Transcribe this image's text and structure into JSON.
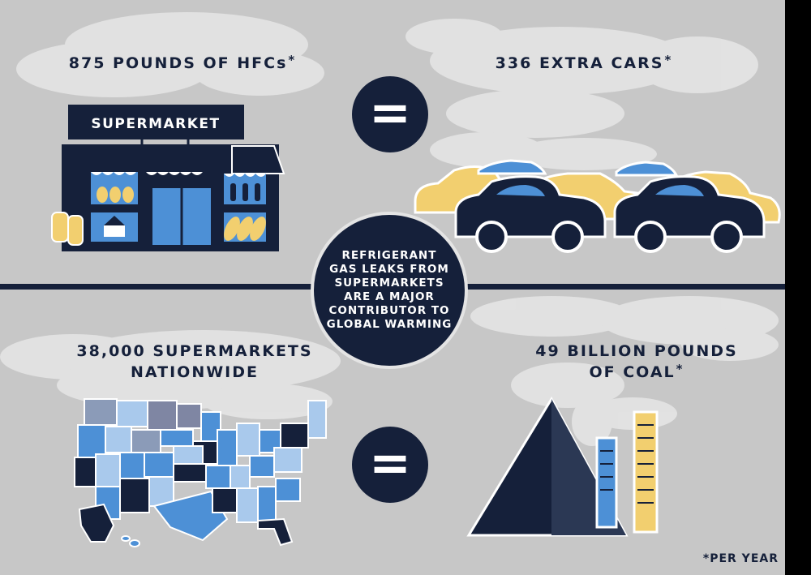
{
  "top": {
    "left_headline": "875 POUNDS OF HFCs",
    "left_asterisk": "*",
    "right_headline": "336 EXTRA CARS",
    "right_asterisk": "*",
    "equals_symbol": "="
  },
  "store": {
    "sign": "SUPERMARKET"
  },
  "center": {
    "text": "REFRIGERANT\nGAS LEAKS FROM\nSUPERMARKETS\nARE A MAJOR\nCONTRIBUTOR TO\nGLOBAL WARMING"
  },
  "bottom": {
    "left_headline_line1": "38,000 SUPERMARKETS",
    "left_headline_line2": "NATIONWIDE",
    "right_headline_line1": "49 BILLION POUNDS",
    "right_headline_line2": "OF COAL",
    "right_asterisk": "*",
    "equals_symbol": "="
  },
  "footnote": "*PER YEAR",
  "colors": {
    "navy": "#15203a",
    "background": "#c7c7c7",
    "blue": "#4d90d6",
    "yellow": "#f2cf6f",
    "smoke": "#e6e6e6"
  },
  "icons": [
    "supermarket-icon",
    "cars-icon",
    "us-map-icon",
    "coal-pile-icon",
    "smokestack-icon",
    "smoke-cloud-icon"
  ]
}
